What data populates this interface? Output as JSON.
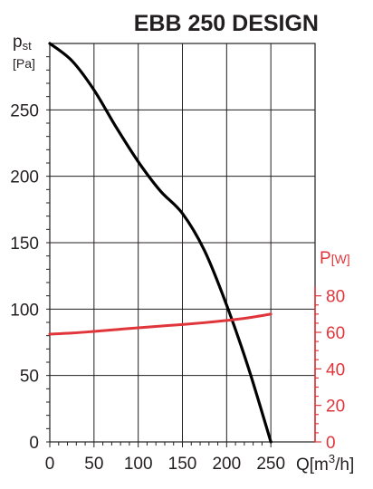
{
  "chart_data": {
    "type": "line",
    "title": "EBB 250 DESIGN",
    "x": {
      "label_main": "Q",
      "label_unit_pre": "[m",
      "label_unit_sup": "3",
      "label_unit_post": "/h]",
      "lim": [
        0,
        250
      ],
      "ticks": [
        0,
        50,
        100,
        150,
        200,
        250
      ]
    },
    "y_left": {
      "label_main": "p",
      "label_sub": "st",
      "label_unit": "[Pa]",
      "lim": [
        0,
        300
      ],
      "ticks": [
        0,
        50,
        100,
        150,
        200,
        250
      ],
      "color": "#231f20"
    },
    "y_right": {
      "label_main": "P",
      "label_unit": "[W]",
      "lim": [
        0,
        80
      ],
      "ticks": [
        0,
        20,
        40,
        60,
        80
      ],
      "color": "#e0363b"
    },
    "grid": true,
    "series": [
      {
        "axis": "left",
        "color": "#000000",
        "x": [
          0,
          25,
          50,
          75,
          100,
          125,
          150,
          175,
          200,
          225,
          250
        ],
        "y": [
          300,
          287,
          265,
          237,
          211,
          189,
          172,
          144,
          103,
          55,
          0
        ]
      },
      {
        "axis": "right",
        "color": "#e0363b",
        "x": [
          0,
          25,
          50,
          75,
          100,
          125,
          150,
          175,
          200,
          225,
          250
        ],
        "y": [
          59,
          59.6,
          60.5,
          61.5,
          62.5,
          63.4,
          64.3,
          65.3,
          66.5,
          68,
          70
        ]
      }
    ]
  }
}
